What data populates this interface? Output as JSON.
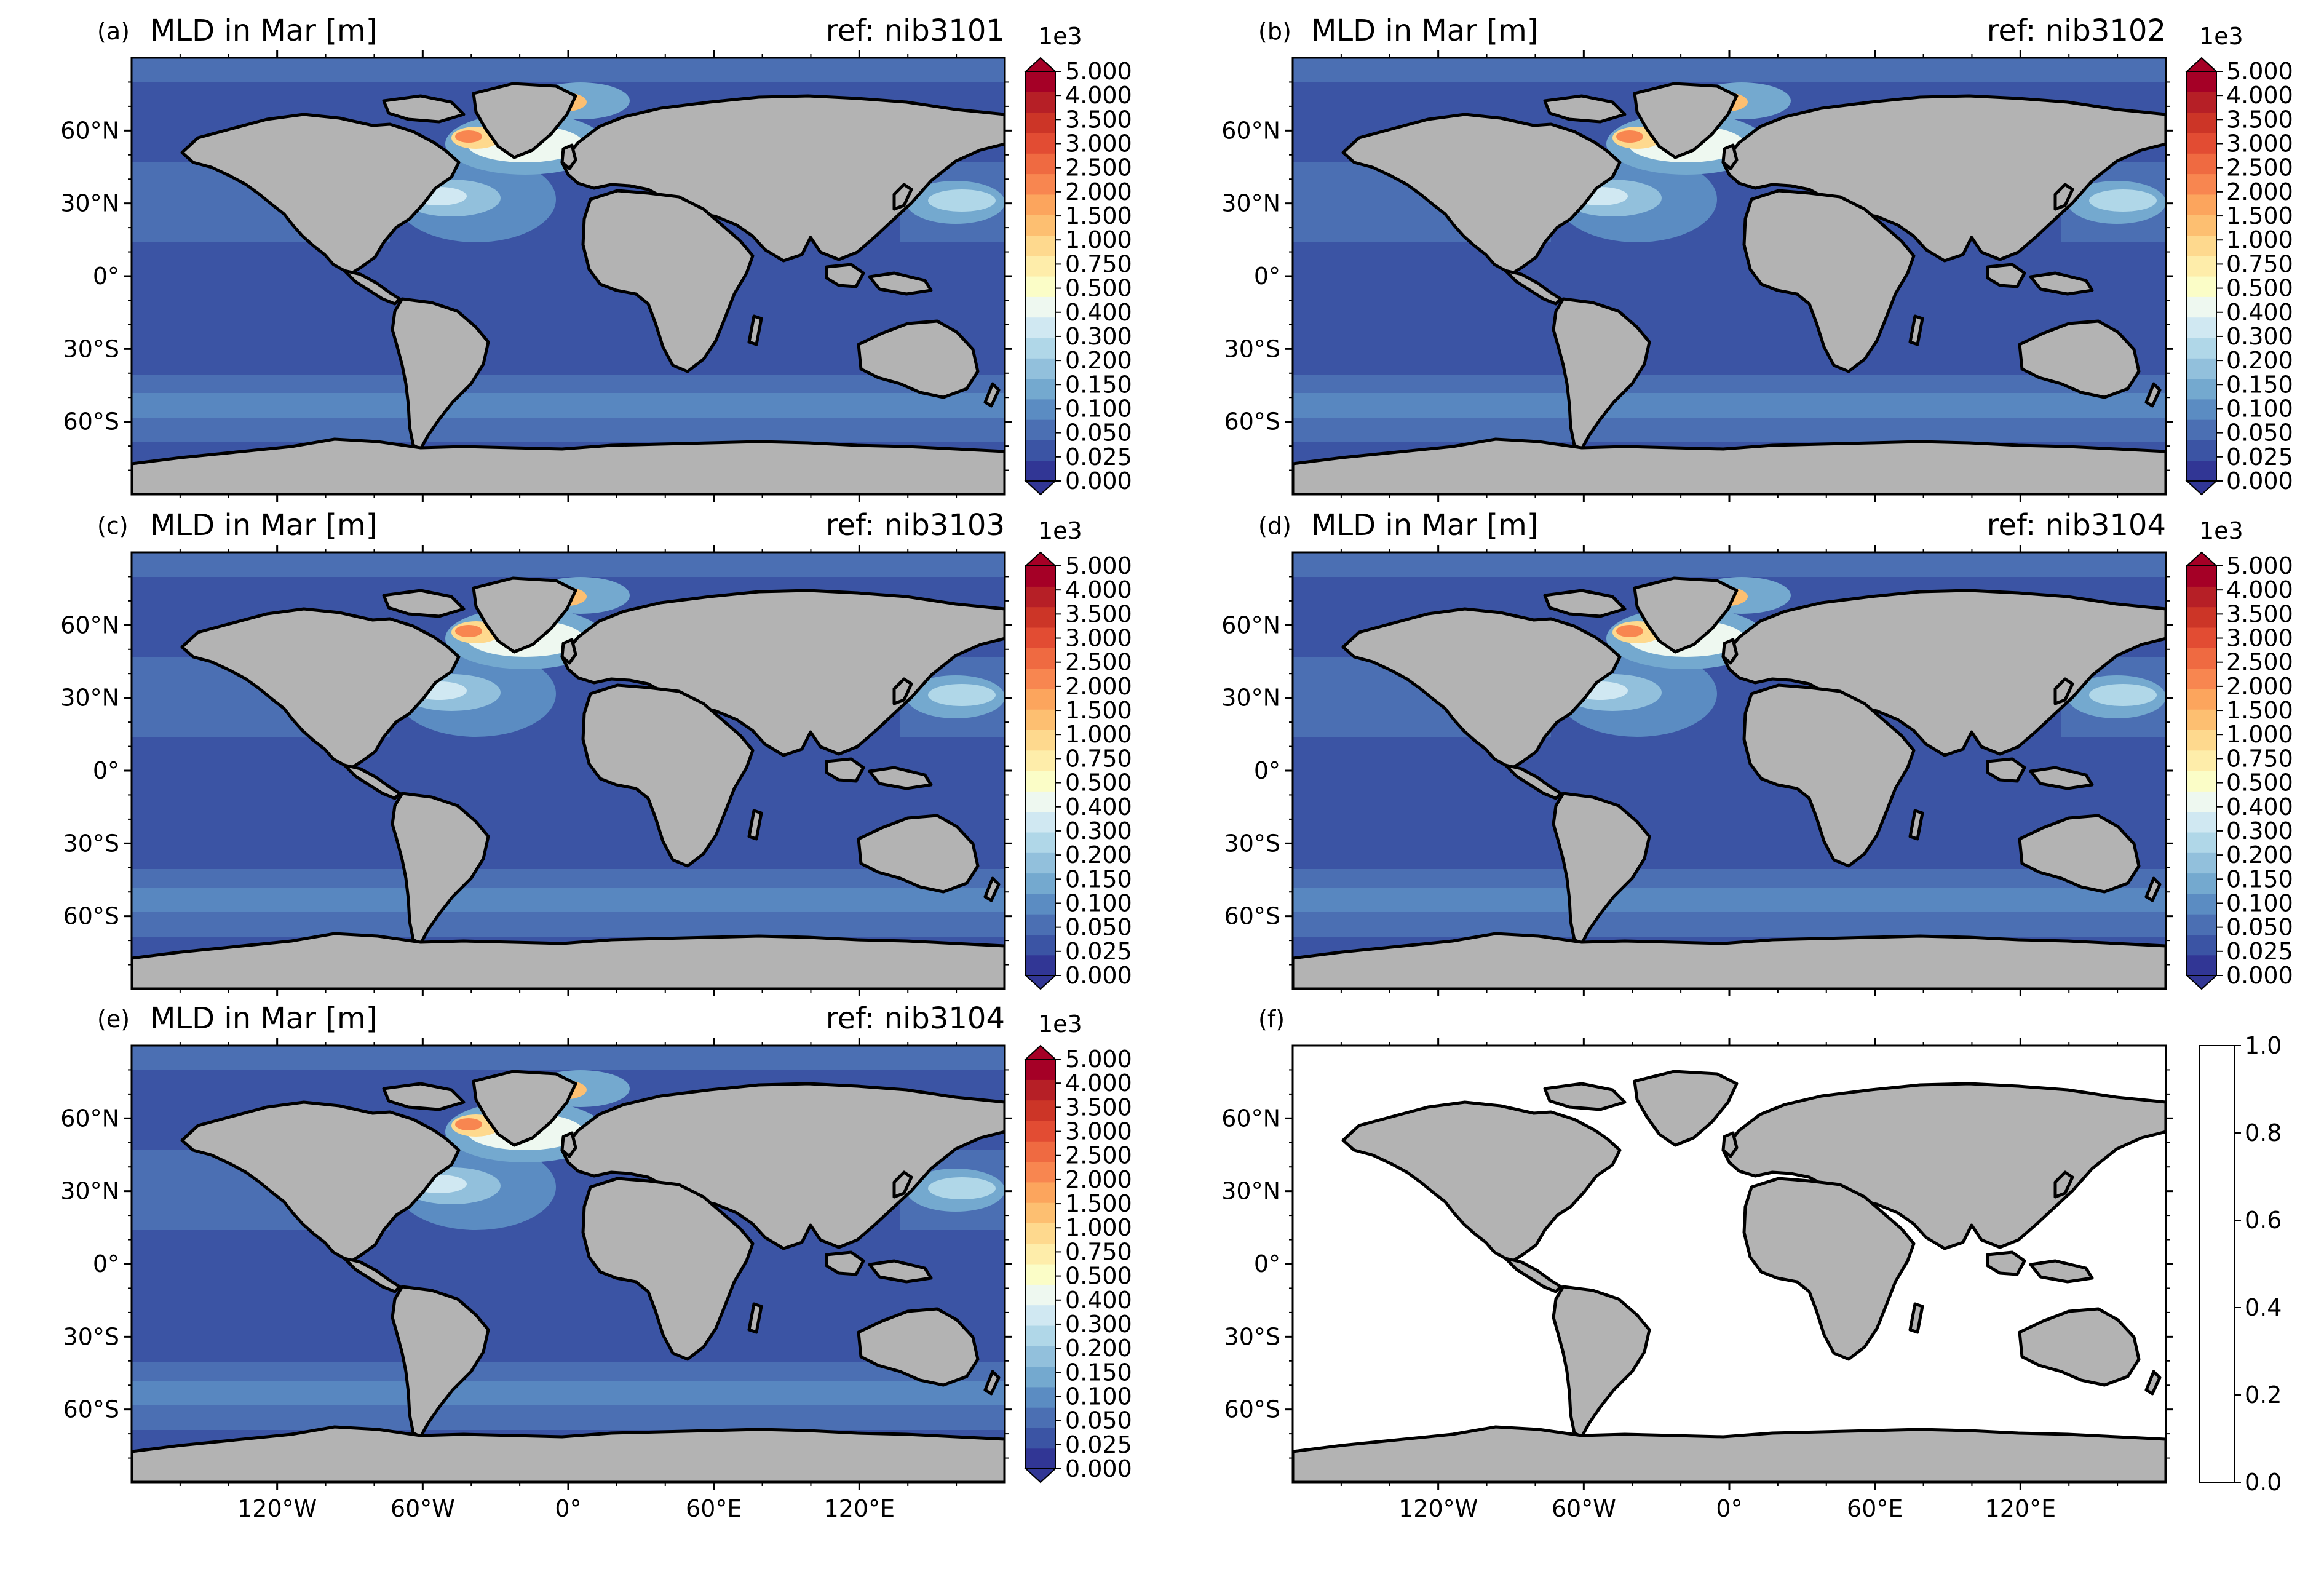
{
  "figure": {
    "tick_labels": {
      "lat": [
        "60°N",
        "30°N",
        "0°",
        "30°S",
        "60°S"
      ],
      "lon": [
        "120°W",
        "60°W",
        "0°",
        "60°E",
        "120°E"
      ]
    },
    "colors": {
      "land": "#b3b3b3",
      "coast": "#000000",
      "cmap": [
        "#313695",
        "#3b54a4",
        "#4b6fb3",
        "#5b8cc2",
        "#74a9cf",
        "#92c0dc",
        "#b0d7e8",
        "#d0e8f2",
        "#eef8f0",
        "#fbfdc7",
        "#feedaa",
        "#fed98e",
        "#fdbf71",
        "#fca55d",
        "#f88650",
        "#ef6a41",
        "#e24c33",
        "#cc3527",
        "#b61f26",
        "#a50026"
      ]
    },
    "colorbar_levels": {
      "exponent": "1e3",
      "ticks": [
        "5.000",
        "4.000",
        "3.500",
        "3.000",
        "2.500",
        "2.000",
        "1.500",
        "1.000",
        "0.750",
        "0.500",
        "0.400",
        "0.300",
        "0.200",
        "0.150",
        "0.100",
        "0.050",
        "0.025",
        "0.000"
      ]
    },
    "panels": [
      {
        "label": "(a)",
        "title": "MLD in Mar [m]",
        "ref": "ref: nib3101",
        "type": "mld"
      },
      {
        "label": "(b)",
        "title": "MLD in Mar [m]",
        "ref": "ref: nib3102",
        "type": "mld"
      },
      {
        "label": "(c)",
        "title": "MLD in Mar [m]",
        "ref": "ref: nib3103",
        "type": "mld"
      },
      {
        "label": "(d)",
        "title": "MLD in Mar [m]",
        "ref": "ref: nib3104",
        "type": "mld"
      },
      {
        "label": "(e)",
        "title": "MLD in Mar [m]",
        "ref": "ref: nib3104",
        "type": "mld"
      },
      {
        "label": "(f)",
        "title": "",
        "ref": "",
        "type": "empty",
        "colorbar_ticks": [
          "1.0",
          "0.8",
          "0.6",
          "0.4",
          "0.2",
          "0.0"
        ]
      }
    ]
  }
}
